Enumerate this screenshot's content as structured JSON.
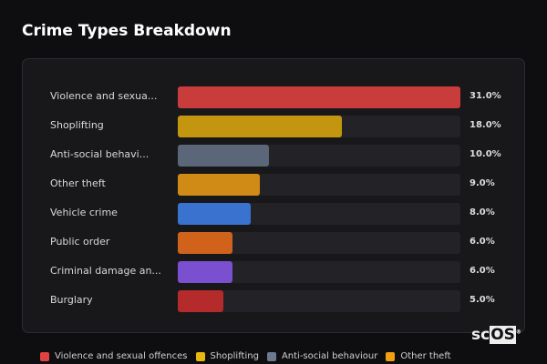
{
  "chart_data": {
    "type": "bar",
    "orientation": "horizontal",
    "title": "Crime Types Breakdown",
    "categories": [
      "Violence and sexua...",
      "Shoplifting",
      "Anti-social behavi...",
      "Other theft",
      "Vehicle crime",
      "Public order",
      "Criminal damage an...",
      "Burglary"
    ],
    "values": [
      31.0,
      18.0,
      10.0,
      9.0,
      8.0,
      6.0,
      6.0,
      5.0
    ],
    "value_labels": [
      "31.0%",
      "18.0%",
      "10.0%",
      "9.0%",
      "8.0%",
      "6.0%",
      "6.0%",
      "5.0%"
    ],
    "colors": [
      "#c93c3c",
      "#c4960f",
      "#5b6678",
      "#d08a16",
      "#3a72d0",
      "#d0621c",
      "#7a4fd0",
      "#b52a2a"
    ],
    "xlim": [
      0,
      31
    ],
    "grid": false,
    "legend_position": "bottom",
    "legend": [
      {
        "label": "Violence and sexual offences",
        "color": "#e04242"
      },
      {
        "label": "Shoplifting",
        "color": "#e8b80f"
      },
      {
        "label": "Anti-social behaviour",
        "color": "#6b7a90"
      },
      {
        "label": "Other theft",
        "color": "#f0a010"
      }
    ]
  },
  "logo": {
    "text_a": "sc",
    "text_b": "OS",
    "mark": "®"
  }
}
